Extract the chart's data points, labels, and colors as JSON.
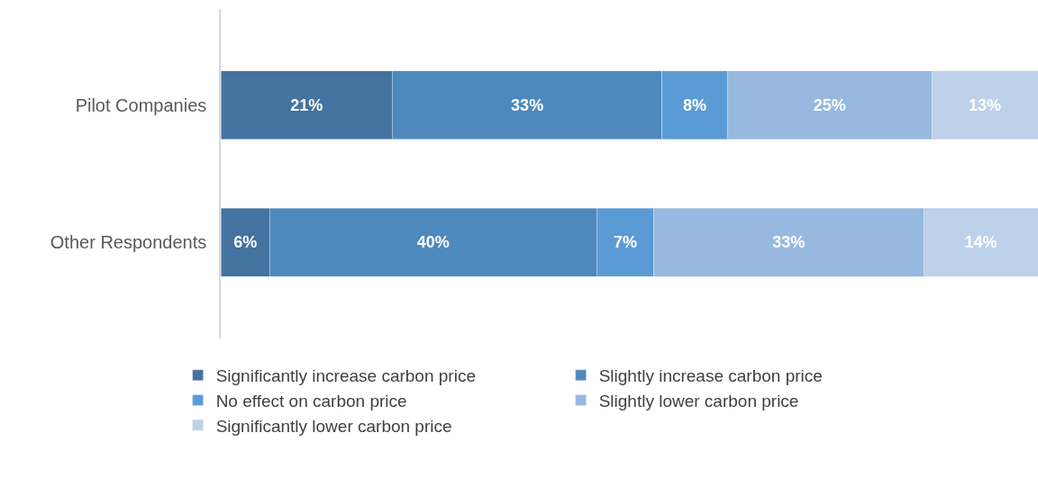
{
  "chart_data": {
    "type": "bar",
    "orientation": "horizontal",
    "stacked": true,
    "categories": [
      "Pilot Companies",
      "Other Respondents"
    ],
    "series": [
      {
        "name": "Significantly increase carbon price",
        "color": "#44739f",
        "values": [
          21,
          6
        ],
        "value_labels": [
          "21%",
          "6%"
        ]
      },
      {
        "name": "Slightly increase carbon price",
        "color": "#4e89bd",
        "values": [
          33,
          40
        ],
        "value_labels": [
          "33%",
          "40%"
        ]
      },
      {
        "name": "No effect on carbon price",
        "color": "#5b9bd5",
        "values": [
          8,
          7
        ],
        "value_labels": [
          "8%",
          "7%"
        ]
      },
      {
        "name": "Slightly lower carbon price",
        "color": "#97b9e0",
        "values": [
          25,
          33
        ],
        "value_labels": [
          "25%",
          "33%"
        ]
      },
      {
        "name": "Significantly lower carbon price",
        "color": "#bdd1ea",
        "values": [
          13,
          14
        ],
        "value_labels": [
          "13%",
          "14%"
        ]
      }
    ],
    "legend": "bottom",
    "tick_labels": "y"
  }
}
